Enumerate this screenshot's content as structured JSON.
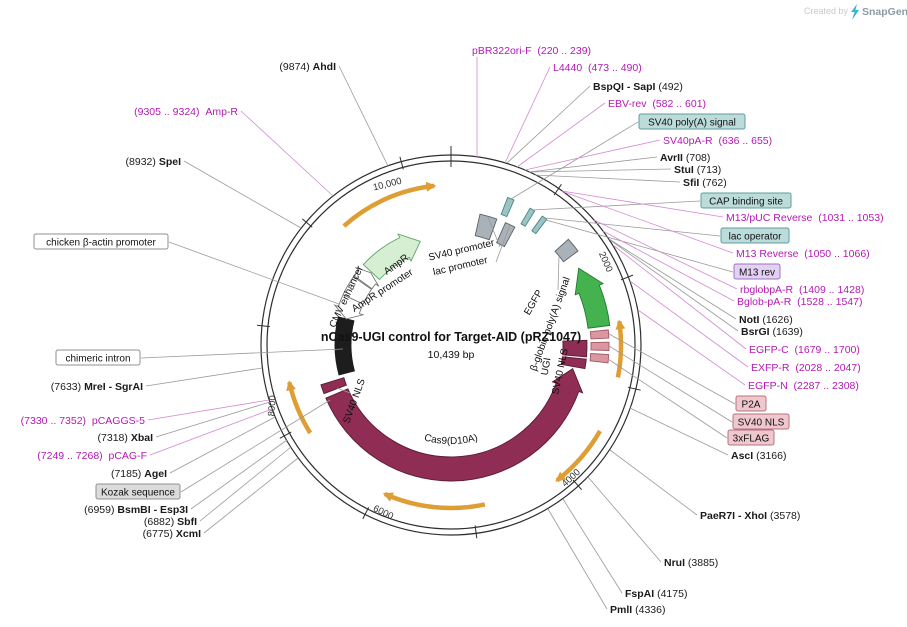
{
  "watermark": {
    "created_by": "Created by",
    "brand": "SnapGene"
  },
  "plasmid": {
    "title": "nCas9-UGI control for Target-AID (pRZ1047)",
    "size": "10,439 bp"
  },
  "ticks": {
    "k2": "2000",
    "k4": "4000",
    "k6": "6000",
    "k8": "8000",
    "k10": "10,000"
  },
  "enzymes": [
    {
      "pos": "(9874) ",
      "name": "AhdI"
    },
    {
      "pos": "(8932) ",
      "name": "SpeI"
    },
    {
      "pos": "(7633) ",
      "name": "MreI - SgrAI"
    },
    {
      "pos": "(7318) ",
      "name": "XbaI"
    },
    {
      "pos": "(7185) ",
      "name": "AgeI"
    },
    {
      "pos": "(6959) ",
      "name": "BsmBI - Esp3I"
    },
    {
      "pos": "(6882) ",
      "name": "SbfI"
    },
    {
      "pos": "(6775) ",
      "name": "XcmI"
    },
    {
      "name": "BspQI - SapI",
      "pos": " (492)"
    },
    {
      "name": "AvrII",
      "pos": " (708)"
    },
    {
      "name": "StuI",
      "pos": " (713)"
    },
    {
      "name": "SfiI",
      "pos": " (762)"
    },
    {
      "name": "NotI",
      "pos": " (1626)"
    },
    {
      "name": "BsrGI",
      "pos": " (1639)"
    },
    {
      "name": "AscI",
      "pos": " (3166)"
    },
    {
      "name": "PaeR7I - XhoI",
      "pos": " (3578)"
    },
    {
      "name": "NruI",
      "pos": " (3885)"
    },
    {
      "name": "FspAI",
      "pos": " (4175)"
    },
    {
      "name": "PmlI",
      "pos": " (4336)"
    }
  ],
  "primers": [
    "(9305 .. 9324)  Amp-R",
    "(7330 .. 7352)  pCAGGS-5",
    "(7249 .. 7268)  pCAG-F",
    "pBR322ori-F  (220 .. 239)",
    "L4440  (473 .. 490)",
    "EBV-rev  (582 .. 601)",
    "SV40pA-R  (636 .. 655)",
    "M13/pUC Reverse  (1031 .. 1053)",
    "M13 Reverse  (1050 .. 1066)",
    "rbglobpA-R  (1409 .. 1428)",
    "Bglob-pA-R  (1528 .. 1547)",
    "EGFP-C  (1679 .. 1700)",
    "EXFP-R  (2028 .. 2047)",
    "EGFP-N  (2287 .. 2308)"
  ],
  "boxed": {
    "sv40_polya": "SV40 poly(A) signal",
    "cap": "CAP binding site",
    "lac_operator": "lac operator",
    "m13_rev": "M13 rev",
    "p2a": "P2A",
    "sv40_nls": "SV40 NLS",
    "flag": "3xFLAG",
    "kozak": "Kozak sequence",
    "bactin": "chicken β-actin promoter",
    "intron": "chimeric intron"
  },
  "inner": {
    "sv40_promoter": "SV40 promoter",
    "lac_promoter": "lac promoter",
    "ampr": "AmpR",
    "ampr_promoter": "AmpR promoter",
    "cmv": "CMV enhancer",
    "egfp": "EGFP",
    "bglobin_polya": "β-globin poly(A) signal",
    "ugi": "UGI",
    "nls_right": "SV40 NLS",
    "nls_left": "SV40 NLS",
    "cas9": "Cas9(D10A)"
  },
  "colors": {
    "primer_magenta": "#b31ab3",
    "enzyme_black": "#1a1a1a",
    "cas9_maroon": "#8f2d55",
    "egfp_green": "#44b24f",
    "orf_orange": "#df9e33",
    "ampr_pale_green": "#d6efd2",
    "teal_box": "#bcdcdc",
    "pink_box": "#f1c7ce",
    "purple_box": "#e3d0f2",
    "brand_bolt_blue": "#35b6d9"
  }
}
